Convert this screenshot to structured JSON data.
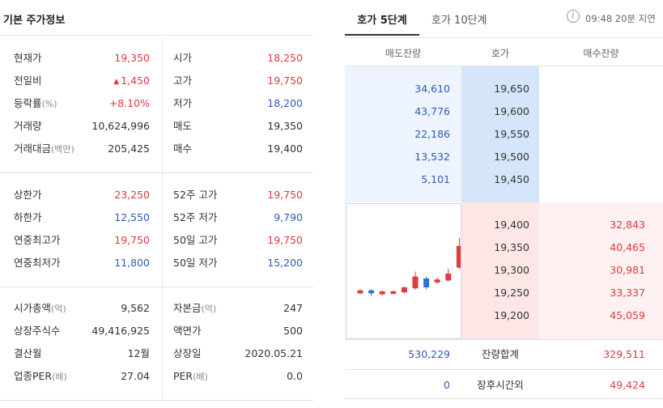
{
  "left": {
    "title": "기본 주가정보",
    "groups": [
      [
        {
          "l1": "현재가",
          "u1": "",
          "v1": "19,350",
          "c1": "red",
          "l2": "시가",
          "u2": "",
          "v2": "18,250",
          "c2": "red"
        },
        {
          "l1": "전일비",
          "u1": "",
          "v1": "1,450",
          "c1": "red",
          "tri": "▲",
          "l2": "고가",
          "u2": "",
          "v2": "19,750",
          "c2": "red"
        },
        {
          "l1": "등락률",
          "u1": "(%)",
          "v1": "+8.10%",
          "c1": "red",
          "l2": "저가",
          "u2": "",
          "v2": "18,200",
          "c2": "blue"
        },
        {
          "l1": "거래량",
          "u1": "",
          "v1": "10,624,996",
          "c1": "dark",
          "l2": "매도",
          "u2": "",
          "v2": "19,350",
          "c2": "dark"
        },
        {
          "l1": "거래대금",
          "u1": "(백만)",
          "v1": "205,425",
          "c1": "dark",
          "l2": "매수",
          "u2": "",
          "v2": "19,400",
          "c2": "dark"
        }
      ],
      [
        {
          "l1": "상한가",
          "u1": "",
          "v1": "23,250",
          "c1": "red",
          "l2": "52주 고가",
          "u2": "",
          "v2": "19,750",
          "c2": "red"
        },
        {
          "l1": "하한가",
          "u1": "",
          "v1": "12,550",
          "c1": "blue",
          "l2": "52주 저가",
          "u2": "",
          "v2": "9,790",
          "c2": "blue"
        },
        {
          "l1": "연중최고가",
          "u1": "",
          "v1": "19,750",
          "c1": "red",
          "l2": "50일 고가",
          "u2": "",
          "v2": "19,750",
          "c2": "red"
        },
        {
          "l1": "연중최저가",
          "u1": "",
          "v1": "11,800",
          "c1": "blue",
          "l2": "50일 저가",
          "u2": "",
          "v2": "15,200",
          "c2": "blue"
        }
      ],
      [
        {
          "l1": "시가총액",
          "u1": "(억)",
          "v1": "9,562",
          "c1": "dark",
          "l2": "자본금",
          "u2": "(억)",
          "v2": "247",
          "c2": "dark"
        },
        {
          "l1": "상장주식수",
          "u1": "",
          "v1": "49,416,925",
          "c1": "dark",
          "l2": "액면가",
          "u2": "",
          "v2": "500",
          "c2": "dark"
        },
        {
          "l1": "결산월",
          "u1": "",
          "v1": "12월",
          "c1": "dark",
          "l2": "상장일",
          "u2": "",
          "v2": "2020.05.21",
          "c2": "dark"
        },
        {
          "l1": "업종PER",
          "u1": "(배)",
          "v1": "27.04",
          "c1": "dark",
          "l2": "PER",
          "u2": "(배)",
          "v2": "0.0",
          "c2": "dark"
        }
      ]
    ]
  },
  "right": {
    "tabs": [
      "호가 5단계",
      "호가 10단계"
    ],
    "info_icon": "info-icon",
    "timestamp": "09:48 20분 지연",
    "headers": {
      "sell": "매도잔량",
      "price": "호가",
      "buy": "매수잔량"
    },
    "sell": [
      {
        "qty": "34,610",
        "price": "19,650"
      },
      {
        "qty": "43,776",
        "price": "19,600"
      },
      {
        "qty": "22,186",
        "price": "19,550"
      },
      {
        "qty": "13,532",
        "price": "19,500"
      },
      {
        "qty": "5,101",
        "price": "19,450"
      }
    ],
    "buy": [
      {
        "price": "19,400",
        "qty": "32,843"
      },
      {
        "price": "19,350",
        "qty": "40,465"
      },
      {
        "price": "19,300",
        "qty": "30,981"
      },
      {
        "price": "19,250",
        "qty": "33,337"
      },
      {
        "price": "19,200",
        "qty": "45,059"
      }
    ],
    "totals": [
      {
        "sell": "530,229",
        "label": "잔량합계",
        "buy": "329,511"
      },
      {
        "sell": "0",
        "label": "장후시간외",
        "buy": "49,424"
      }
    ],
    "mini_chart": {
      "colors": {
        "up": "#e03a3e",
        "down": "#2e6fd6"
      },
      "candles": [
        {
          "open": 16950,
          "close": 17100,
          "high": 17150,
          "low": 16900,
          "up": true
        },
        {
          "open": 17100,
          "close": 16950,
          "high": 17150,
          "low": 16800,
          "up": false
        },
        {
          "open": 16900,
          "close": 17050,
          "high": 17100,
          "low": 16850,
          "up": true
        },
        {
          "open": 16950,
          "close": 17050,
          "high": 17100,
          "low": 16900,
          "up": true
        },
        {
          "open": 17000,
          "close": 17250,
          "high": 17300,
          "low": 16950,
          "up": true
        },
        {
          "open": 17200,
          "close": 17800,
          "high": 18050,
          "low": 17150,
          "up": true
        },
        {
          "open": 17700,
          "close": 17250,
          "high": 17800,
          "low": 17150,
          "up": false
        },
        {
          "open": 17500,
          "close": 17650,
          "high": 17750,
          "low": 17450,
          "up": true
        },
        {
          "open": 17600,
          "close": 17950,
          "high": 18200,
          "low": 17550,
          "up": true
        },
        {
          "open": 18250,
          "close": 19350,
          "high": 19750,
          "low": 18200,
          "up": true
        }
      ]
    }
  }
}
